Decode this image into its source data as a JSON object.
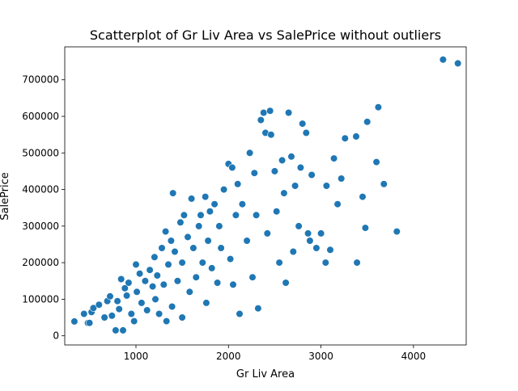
{
  "chart_data": {
    "type": "scatter",
    "title": "Scatterplot of Gr Liv Area vs SalePrice without outliers",
    "xlabel": "Gr Liv Area",
    "ylabel": "SalePrice",
    "xlim": [
      230,
      4570
    ],
    "ylim": [
      -25000,
      790000
    ],
    "xticks": [
      1000,
      2000,
      3000,
      4000
    ],
    "xtick_labels": [
      "1000",
      "2000",
      "3000",
      "4000"
    ],
    "yticks": [
      0,
      100000,
      200000,
      300000,
      400000,
      500000,
      600000,
      700000
    ],
    "ytick_labels": [
      "0",
      "100000",
      "200000",
      "300000",
      "400000",
      "500000",
      "600000",
      "700000"
    ],
    "grid": false,
    "marker_color": "#1f77b4",
    "marker_edge_color": "#ffffff",
    "points": [
      [
        334,
        39300
      ],
      [
        438,
        60000
      ],
      [
        480,
        35000
      ],
      [
        498,
        35300
      ],
      [
        520,
        65000
      ],
      [
        540,
        76000
      ],
      [
        600,
        85000
      ],
      [
        660,
        50000
      ],
      [
        690,
        95000
      ],
      [
        720,
        108000
      ],
      [
        740,
        55000
      ],
      [
        780,
        15000
      ],
      [
        800,
        95000
      ],
      [
        818,
        73000
      ],
      [
        840,
        155000
      ],
      [
        860,
        15000
      ],
      [
        880,
        130000
      ],
      [
        900,
        110000
      ],
      [
        920,
        145000
      ],
      [
        950,
        60000
      ],
      [
        980,
        40000
      ],
      [
        1000,
        195000
      ],
      [
        1010,
        120000
      ],
      [
        1040,
        170000
      ],
      [
        1060,
        90000
      ],
      [
        1100,
        150000
      ],
      [
        1120,
        70000
      ],
      [
        1150,
        180000
      ],
      [
        1180,
        135000
      ],
      [
        1200,
        215000
      ],
      [
        1210,
        100000
      ],
      [
        1230,
        165000
      ],
      [
        1250,
        60000
      ],
      [
        1280,
        240000
      ],
      [
        1300,
        140000
      ],
      [
        1320,
        285000
      ],
      [
        1330,
        40000
      ],
      [
        1350,
        195000
      ],
      [
        1380,
        260000
      ],
      [
        1390,
        80000
      ],
      [
        1400,
        390000
      ],
      [
        1420,
        230000
      ],
      [
        1450,
        150000
      ],
      [
        1480,
        310000
      ],
      [
        1500,
        50000
      ],
      [
        1500,
        200000
      ],
      [
        1520,
        330000
      ],
      [
        1560,
        270000
      ],
      [
        1580,
        120000
      ],
      [
        1600,
        375000
      ],
      [
        1620,
        240000
      ],
      [
        1650,
        160000
      ],
      [
        1680,
        300000
      ],
      [
        1700,
        330000
      ],
      [
        1720,
        200000
      ],
      [
        1750,
        380000
      ],
      [
        1760,
        90000
      ],
      [
        1780,
        260000
      ],
      [
        1800,
        340000
      ],
      [
        1820,
        185000
      ],
      [
        1850,
        360000
      ],
      [
        1880,
        145000
      ],
      [
        1900,
        300000
      ],
      [
        1920,
        240000
      ],
      [
        1950,
        400000
      ],
      [
        2000,
        470000
      ],
      [
        2020,
        210000
      ],
      [
        2040,
        460000
      ],
      [
        2050,
        140000
      ],
      [
        2080,
        330000
      ],
      [
        2100,
        415000
      ],
      [
        2120,
        60000
      ],
      [
        2150,
        360000
      ],
      [
        2200,
        260000
      ],
      [
        2230,
        500000
      ],
      [
        2260,
        160000
      ],
      [
        2280,
        445000
      ],
      [
        2300,
        330000
      ],
      [
        2320,
        75000
      ],
      [
        2350,
        590000
      ],
      [
        2380,
        610000
      ],
      [
        2400,
        555000
      ],
      [
        2420,
        280000
      ],
      [
        2450,
        615000
      ],
      [
        2460,
        550000
      ],
      [
        2500,
        450000
      ],
      [
        2520,
        340000
      ],
      [
        2550,
        200000
      ],
      [
        2580,
        480000
      ],
      [
        2600,
        390000
      ],
      [
        2620,
        145000
      ],
      [
        2650,
        610000
      ],
      [
        2680,
        490000
      ],
      [
        2700,
        230000
      ],
      [
        2720,
        410000
      ],
      [
        2760,
        300000
      ],
      [
        2780,
        460000
      ],
      [
        2800,
        580000
      ],
      [
        2840,
        555000
      ],
      [
        2860,
        280000
      ],
      [
        2880,
        260000
      ],
      [
        2900,
        440000
      ],
      [
        2950,
        240000
      ],
      [
        3000,
        280000
      ],
      [
        3050,
        200000
      ],
      [
        3060,
        410000
      ],
      [
        3100,
        235000
      ],
      [
        3140,
        485000
      ],
      [
        3180,
        360000
      ],
      [
        3220,
        430000
      ],
      [
        3260,
        540000
      ],
      [
        3380,
        545000
      ],
      [
        3390,
        200000
      ],
      [
        3450,
        380000
      ],
      [
        3480,
        295000
      ],
      [
        3500,
        585000
      ],
      [
        3600,
        475000
      ],
      [
        3620,
        625000
      ],
      [
        3680,
        415000
      ],
      [
        3820,
        285000
      ],
      [
        4320,
        755000
      ],
      [
        4480,
        745000
      ]
    ]
  }
}
